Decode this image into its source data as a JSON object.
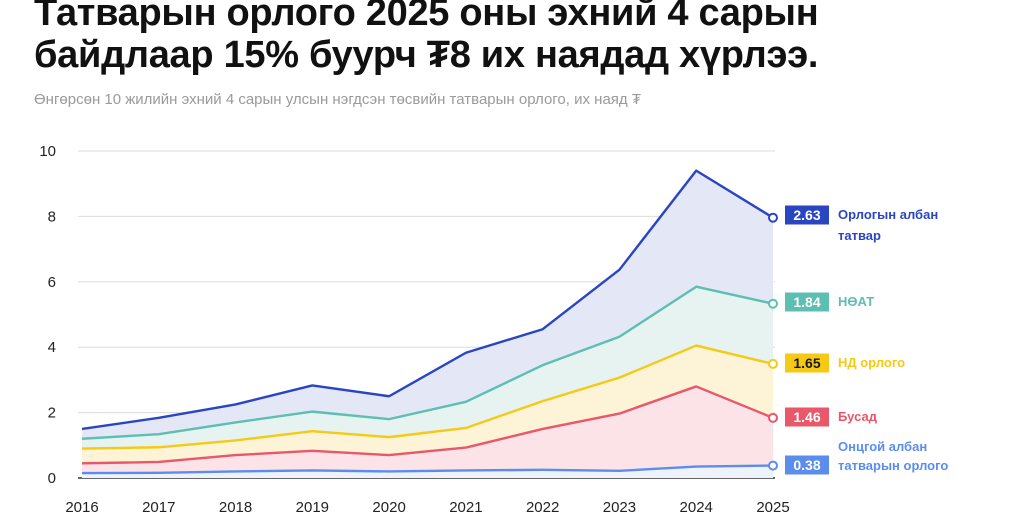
{
  "header": {
    "title": "Татварын орлого 2025 оны эхний 4 сарын байдлаар 15% буурч ₮8 их наядад хүрлээ.",
    "subtitle": "Өнгөрсөн 10 жилийн эхний 4 сарын улсын нэгдсэн төсвийн татварын орлого, их наяд ₮"
  },
  "chart_data": {
    "type": "line",
    "stacked": true,
    "x": [
      "2016",
      "2017",
      "2018",
      "2019",
      "2020",
      "2021",
      "2022",
      "2023",
      "2024",
      "2025"
    ],
    "ylim": [
      0,
      10
    ],
    "yticks": [
      "0",
      "2",
      "4",
      "6",
      "8",
      "10"
    ],
    "grid": true,
    "series": [
      {
        "name": "Онцгой албан татварын орлого",
        "label_lines": [
          "Онцгой албан",
          "татварын орлого"
        ],
        "badge": "0.38",
        "color": "#5b8def",
        "fill": "#eef2fb",
        "values": [
          0.15,
          0.16,
          0.2,
          0.23,
          0.2,
          0.23,
          0.25,
          0.22,
          0.35,
          0.38
        ]
      },
      {
        "name": "Бусад",
        "label_lines": [
          "Бусад"
        ],
        "badge": "1.46",
        "color": "#e8586a",
        "fill": "#fbe3e8",
        "values": [
          0.3,
          0.33,
          0.5,
          0.6,
          0.5,
          0.7,
          1.25,
          1.75,
          2.45,
          1.46
        ]
      },
      {
        "name": "НД орлого",
        "label_lines": [
          "НД орлого"
        ],
        "badge": "1.65",
        "color": "#f6c915",
        "fill": "#fdf3d6",
        "values": [
          0.45,
          0.45,
          0.45,
          0.6,
          0.55,
          0.6,
          0.85,
          1.1,
          1.25,
          1.65
        ]
      },
      {
        "name": "НӨАТ",
        "label_lines": [
          "НӨАТ"
        ],
        "badge": "1.84",
        "color": "#5cbfb2",
        "fill": "#e6f3f1",
        "values": [
          0.3,
          0.4,
          0.55,
          0.6,
          0.55,
          0.8,
          1.1,
          1.25,
          1.8,
          1.84
        ]
      },
      {
        "name": "Орлогын албан татвар",
        "label_lines": [
          "Орлогын албан",
          "татвар"
        ],
        "badge": "2.63",
        "color": "#2a45c2",
        "fill": "#e4e8f6",
        "values": [
          0.3,
          0.5,
          0.55,
          0.8,
          0.7,
          1.5,
          1.1,
          2.05,
          3.55,
          2.63
        ]
      }
    ]
  }
}
